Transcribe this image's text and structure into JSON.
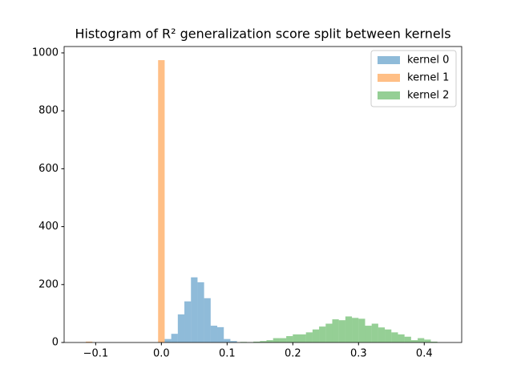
{
  "chart_data": {
    "type": "histogram",
    "title": "Histogram of R² generalization score split between kernels",
    "series": [
      {
        "name": "kernel 0",
        "color": "#1f77b4",
        "bins": [
          0.005,
          0.015,
          0.025,
          0.035,
          0.045,
          0.055,
          0.065,
          0.075,
          0.085,
          0.095,
          0.105,
          0.115
        ],
        "values": [
          12,
          30,
          97,
          142,
          225,
          208,
          153,
          58,
          53,
          12,
          5
        ]
      },
      {
        "name": "kernel 1",
        "color": "#ff7f0e",
        "bins": [
          -0.115,
          -0.105,
          -0.095,
          -0.085,
          -0.075,
          -0.065,
          -0.055,
          -0.045,
          -0.035,
          -0.025,
          -0.015,
          -0.005,
          0.005
        ],
        "values": [
          3,
          0,
          0,
          0,
          0,
          0,
          0,
          0,
          0,
          0,
          0,
          975
        ]
      },
      {
        "name": "kernel 2",
        "color": "#2ca02c",
        "bins": [
          0.12,
          0.13,
          0.14,
          0.15,
          0.16,
          0.17,
          0.18,
          0.19,
          0.2,
          0.21,
          0.22,
          0.23,
          0.24,
          0.25,
          0.26,
          0.27,
          0.28,
          0.29,
          0.3,
          0.31,
          0.32,
          0.33,
          0.34,
          0.35,
          0.36,
          0.37,
          0.38,
          0.39,
          0.4,
          0.41,
          0.42
        ],
        "values": [
          2,
          1,
          3,
          5,
          8,
          15,
          15,
          22,
          28,
          28,
          35,
          45,
          55,
          65,
          80,
          77,
          90,
          85,
          82,
          58,
          65,
          52,
          45,
          35,
          28,
          20,
          8,
          15,
          10,
          3
        ]
      }
    ],
    "alpha": 0.5,
    "xlim": [
      -0.148,
      0.457
    ],
    "xticks": [
      {
        "value": -0.1,
        "label": "−0.1"
      },
      {
        "value": 0,
        "label": "0.0"
      },
      {
        "value": 0.1,
        "label": "0.1"
      },
      {
        "value": 0.2,
        "label": "0.2"
      },
      {
        "value": 0.3,
        "label": "0.3"
      },
      {
        "value": 0.4,
        "label": "0.4"
      }
    ],
    "ylim": [
      0,
      1022
    ],
    "yticks": [
      0,
      200,
      400,
      600,
      800,
      1000
    ],
    "legend": "upper-right"
  }
}
